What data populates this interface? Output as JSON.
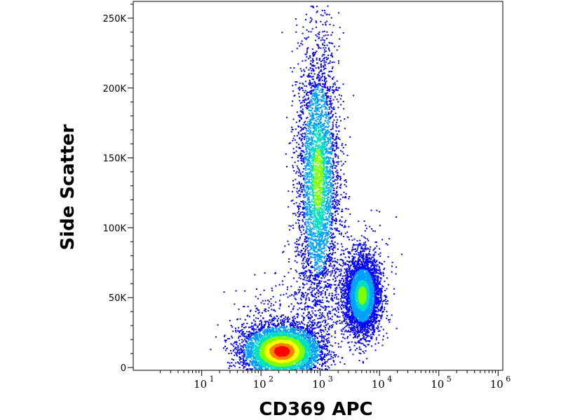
{
  "chart_data": {
    "type": "scatter",
    "title": "",
    "xlabel": "CD369 APC",
    "ylabel": "Side Scatter",
    "x_scale": "log",
    "xlim": [
      0.7,
      1200000
    ],
    "ylim": [
      -2000,
      262000
    ],
    "x_ticks": [
      {
        "value": 10,
        "base": "10",
        "exp": "1"
      },
      {
        "value": 100,
        "base": "10",
        "exp": "2"
      },
      {
        "value": 1000,
        "base": "10",
        "exp": "3"
      },
      {
        "value": 10000,
        "base": "10",
        "exp": "4"
      },
      {
        "value": 100000,
        "base": "10",
        "exp": "5"
      },
      {
        "value": 1000000,
        "base": "10",
        "exp": "6"
      }
    ],
    "y_ticks": [
      {
        "value": 0,
        "label": "0"
      },
      {
        "value": 50000,
        "label": "50K"
      },
      {
        "value": 100000,
        "label": "100K"
      },
      {
        "value": 150000,
        "label": "150K"
      },
      {
        "value": 200000,
        "label": "200K"
      },
      {
        "value": 250000,
        "label": "250K"
      }
    ],
    "grid": false,
    "legend": "none",
    "color_scale": [
      "#0000ff",
      "#00a0ff",
      "#00e0c0",
      "#80ff00",
      "#ffff00",
      "#ff8000",
      "#ff0000"
    ],
    "populations": [
      {
        "center_x": 220,
        "center_y": 12000,
        "spread_log_x": 0.32,
        "spread_y": 9000,
        "peak_density": "high"
      },
      {
        "center_x": 900,
        "center_y": 135000,
        "spread_log_x": 0.18,
        "spread_y": 50000,
        "peak_density": "medium"
      },
      {
        "center_x": 5000,
        "center_y": 52000,
        "spread_log_x": 0.15,
        "spread_y": 14000,
        "peak_density": "medium"
      }
    ]
  }
}
